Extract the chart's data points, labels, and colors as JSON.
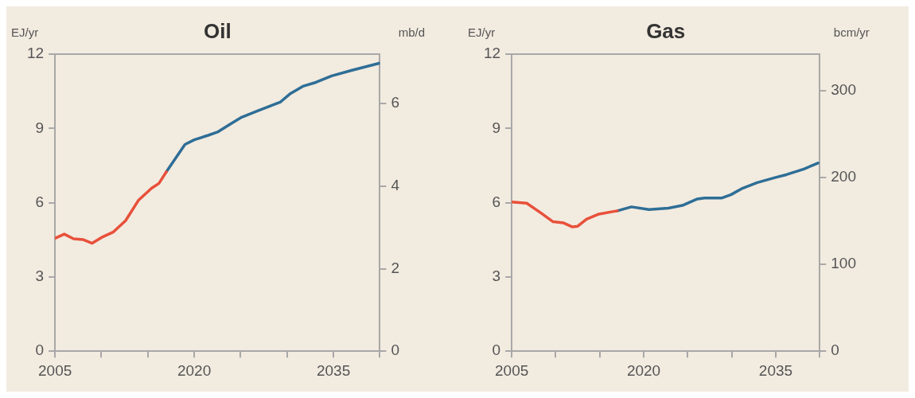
{
  "chart_data": [
    {
      "type": "line",
      "title": "Oil",
      "ylabel": "EJ/yr",
      "y2label": "mb/d",
      "xlim": [
        2005,
        2040
      ],
      "xticks": [
        {
          "value": 2005,
          "label": "2005"
        },
        {
          "value": 2010,
          "label": null
        },
        {
          "value": 2015,
          "label": null
        },
        {
          "value": 2020,
          "label": "2020"
        },
        {
          "value": 2025,
          "label": null
        },
        {
          "value": 2030,
          "label": null
        },
        {
          "value": 2035,
          "label": "2035"
        },
        {
          "value": 2040,
          "label": null
        }
      ],
      "ylim": [
        0,
        12
      ],
      "yticks": [
        0,
        3,
        6,
        9,
        12
      ],
      "y2lim": [
        0,
        7.2
      ],
      "y2ticks": [
        0,
        2,
        4,
        6
      ],
      "grid": false,
      "legend": false,
      "series": [
        {
          "color": "#e8503a",
          "x": [
            2005,
            2006,
            2007,
            2008,
            2009,
            2010,
            2011.3,
            2012.6,
            2014,
            2015.4,
            2016.2,
            2017
          ],
          "values": [
            4.56,
            4.73,
            4.54,
            4.51,
            4.36,
            4.59,
            4.82,
            5.27,
            6.1,
            6.58,
            6.78,
            7.25
          ]
        },
        {
          "color": "#2e6e96",
          "x": [
            2017,
            2019,
            2020,
            2021.5,
            2022.5,
            2023.7,
            2025.1,
            2026.7,
            2028.3,
            2029.3,
            2030.3,
            2031.7,
            2033.1,
            2034.8,
            2037,
            2040
          ],
          "values": [
            7.25,
            8.35,
            8.54,
            8.72,
            8.85,
            9.13,
            9.45,
            9.69,
            9.92,
            10.07,
            10.39,
            10.7,
            10.86,
            11.12,
            11.35,
            11.64
          ]
        }
      ]
    },
    {
      "type": "line",
      "title": "Gas",
      "ylabel": "EJ/yr",
      "y2label": "bcm/yr",
      "xlim": [
        2005,
        2040
      ],
      "xticks": [
        {
          "value": 2005,
          "label": "2005"
        },
        {
          "value": 2010,
          "label": null
        },
        {
          "value": 2015,
          "label": null
        },
        {
          "value": 2020,
          "label": "2020"
        },
        {
          "value": 2025,
          "label": null
        },
        {
          "value": 2030,
          "label": null
        },
        {
          "value": 2035,
          "label": "2035"
        },
        {
          "value": 2040,
          "label": null
        }
      ],
      "ylim": [
        0,
        12
      ],
      "yticks": [
        0,
        3,
        6,
        9,
        12
      ],
      "y2lim": [
        0,
        342
      ],
      "y2ticks": [
        0,
        100,
        200,
        300
      ],
      "grid": false,
      "legend": false,
      "series": [
        {
          "color": "#e8503a",
          "x": [
            2005,
            2006.7,
            2008.3,
            2009.7,
            2010.9,
            2011.9,
            2012.5,
            2013.5,
            2014.9,
            2017
          ],
          "values": [
            6.03,
            5.98,
            5.59,
            5.23,
            5.18,
            5.02,
            5.05,
            5.33,
            5.54,
            5.67
          ]
        },
        {
          "color": "#2e6e96",
          "x": [
            2017,
            2018.6,
            2020.6,
            2022.8,
            2024.4,
            2026.1,
            2026.9,
            2028.9,
            2029.9,
            2031.1,
            2032.9,
            2035,
            2036.2,
            2038.2,
            2039.8
          ],
          "values": [
            5.67,
            5.83,
            5.72,
            5.78,
            5.89,
            6.15,
            6.19,
            6.19,
            6.32,
            6.56,
            6.81,
            7.02,
            7.13,
            7.36,
            7.6
          ]
        }
      ]
    }
  ]
}
